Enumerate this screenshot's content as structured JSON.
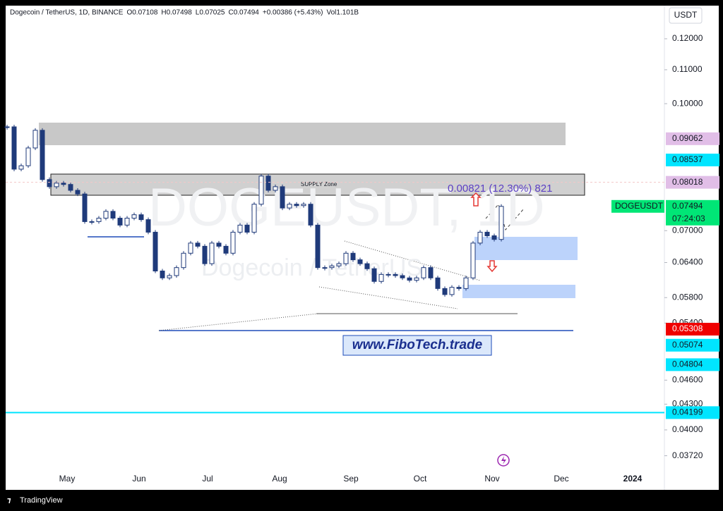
{
  "chart_data": {
    "type": "candlestick",
    "header": [
      "Dogecoin / TetherUS, 1D, BINANCE",
      "O0.07108",
      "H0.07498",
      "L0.07025",
      "C0.07494",
      "+0.00386 (+5.43%)",
      "Vol1.101B"
    ],
    "watermark": [
      "DOGEUSDT, 1D",
      "Dogecoin / TetherUS"
    ],
    "currency": "USDT",
    "values": [
      0.0937,
      0.0832,
      0.084,
      0.0883,
      0.0928,
      0.0808,
      0.0792,
      0.08,
      0.0797,
      0.0784,
      0.0776,
      0.0718,
      0.0718,
      0.0725,
      0.0739,
      0.0725,
      0.0711,
      0.0725,
      0.0732,
      0.0722,
      0.0697,
      0.0625,
      0.0613,
      0.0617,
      0.0631,
      0.0657,
      0.0676,
      0.067,
      0.0638,
      0.0676,
      0.067,
      0.0657,
      0.0697,
      0.0711,
      0.0697,
      0.0754,
      0.0816,
      0.0784,
      0.0792,
      0.0746,
      0.0754,
      0.0751,
      0.0754,
      0.0711,
      0.0631,
      0.0631,
      0.0634,
      0.0638,
      0.0657,
      0.0645,
      0.0638,
      0.0629,
      0.0607,
      0.0619,
      0.0619,
      0.0617,
      0.0613,
      0.0609,
      0.0613,
      0.0631,
      0.0613,
      0.0595,
      0.0585,
      0.0597,
      0.0595,
      0.0613,
      0.0676,
      0.0697,
      0.069,
      0.0683,
      0.07494
    ],
    "up_color": "#ffffff",
    "down_color": "#1f3a7a",
    "log_scale": true,
    "ylim": [
      0.0338,
      0.1338
    ],
    "yticks": [
      {
        "value": 0.12,
        "label": "0.12000"
      },
      {
        "value": 0.11,
        "label": "0.11000"
      },
      {
        "value": 0.1,
        "label": "0.10000"
      },
      {
        "value": 0.07,
        "label": "0.07000"
      },
      {
        "value": 0.064,
        "label": "0.06400"
      },
      {
        "value": 0.058,
        "label": "0.05800"
      },
      {
        "value": 0.054,
        "label": "0.05400"
      },
      {
        "value": 0.046,
        "label": "0.04600"
      },
      {
        "value": 0.043,
        "label": "0.04300"
      },
      {
        "value": 0.04,
        "label": "0.04000"
      },
      {
        "value": 0.0372,
        "label": "0.03720"
      }
    ],
    "xticks": [
      "May",
      "Jun",
      "Jul",
      "Aug",
      "Sep",
      "Oct",
      "Nov",
      "Dec",
      "2024"
    ],
    "price_labels": [
      {
        "value": 0.09062,
        "color": "#e1bee7"
      },
      {
        "value": 0.08537,
        "color": "#00e5ff"
      },
      {
        "value": 0.08018,
        "color": "#e1bee7"
      },
      {
        "value": 0.05308,
        "color": "#f00000"
      },
      {
        "value": 0.05074,
        "color": "#00e5ff"
      },
      {
        "value": 0.04804,
        "color": "#00e5ff"
      },
      {
        "value": 0.04199,
        "color": "#00e5ff"
      }
    ],
    "last_price": {
      "symbol": "DOGEUSDT",
      "value": 0.07494,
      "countdown": "07:24:03",
      "color": "#00e676"
    },
    "annotations": {
      "supply": "SUPPLY Zone",
      "measure": "0.00821 (12.30%) 821",
      "website": "www.FiboTech.trade"
    },
    "footer": "TradingView"
  }
}
